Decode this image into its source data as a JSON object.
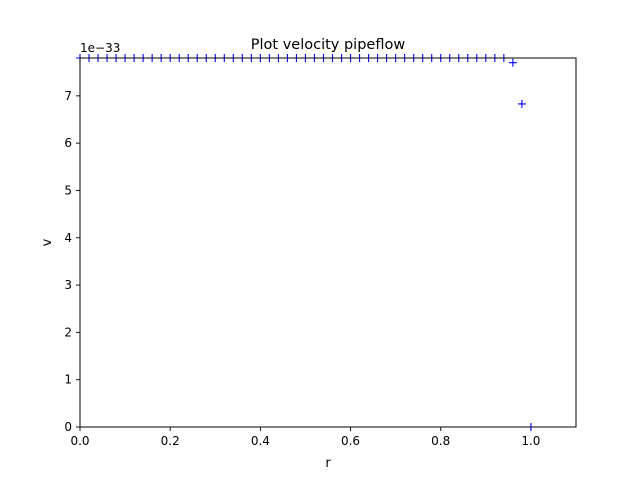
{
  "chart_data": {
    "type": "scatter",
    "title": "Plot velocity pipeflow",
    "xlabel": "r",
    "ylabel": "v",
    "y_offset_label": "1e−33",
    "xlim": [
      0.0,
      1.1
    ],
    "ylim": [
      0.0,
      7.8
    ],
    "x_ticks": [
      0.0,
      0.2,
      0.4,
      0.6,
      0.8,
      1.0
    ],
    "x_tick_labels": [
      "0.0",
      "0.2",
      "0.4",
      "0.6",
      "0.8",
      "1.0"
    ],
    "y_ticks": [
      0,
      1,
      2,
      3,
      4,
      5,
      6,
      7
    ],
    "y_tick_labels": [
      "0",
      "1",
      "2",
      "3",
      "4",
      "5",
      "6",
      "7"
    ],
    "grid": false,
    "marker": "+",
    "color": "#0000ff",
    "series": [
      {
        "x": [
          0.0,
          0.02,
          0.04,
          0.06,
          0.08,
          0.1,
          0.12,
          0.14,
          0.16,
          0.18,
          0.2,
          0.22,
          0.24,
          0.26,
          0.28,
          0.3,
          0.32,
          0.34,
          0.36,
          0.38,
          0.4,
          0.42,
          0.44,
          0.46,
          0.48,
          0.5,
          0.52,
          0.54,
          0.56,
          0.58,
          0.6,
          0.62,
          0.64,
          0.66,
          0.68,
          0.7,
          0.72,
          0.74,
          0.76,
          0.78,
          0.8,
          0.82,
          0.84,
          0.86,
          0.88,
          0.9,
          0.92,
          0.94,
          0.96,
          0.98,
          1.0
        ],
        "y": [
          7.8,
          7.8,
          7.8,
          7.8,
          7.8,
          7.8,
          7.8,
          7.8,
          7.8,
          7.8,
          7.8,
          7.8,
          7.8,
          7.8,
          7.8,
          7.8,
          7.8,
          7.8,
          7.8,
          7.8,
          7.8,
          7.8,
          7.8,
          7.8,
          7.8,
          7.8,
          7.8,
          7.8,
          7.8,
          7.8,
          7.8,
          7.8,
          7.8,
          7.8,
          7.8,
          7.8,
          7.8,
          7.8,
          7.8,
          7.8,
          7.8,
          7.8,
          7.8,
          7.8,
          7.8,
          7.8,
          7.8,
          7.8,
          7.7,
          6.83,
          0.0
        ]
      }
    ]
  }
}
